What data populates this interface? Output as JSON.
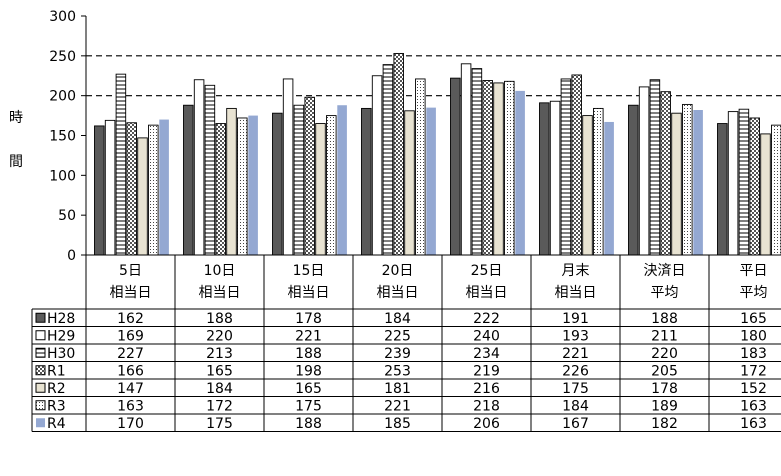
{
  "chart_data": {
    "type": "bar",
    "title": "",
    "ylabel": "時間",
    "ylim": [
      0,
      300
    ],
    "yticks": [
      0,
      50,
      100,
      150,
      200,
      250,
      300
    ],
    "gridlines": "dashed at 200 and 250",
    "categories": [
      [
        "5日",
        "相当日"
      ],
      [
        "10日",
        "相当日"
      ],
      [
        "15日",
        "相当日"
      ],
      [
        "20日",
        "相当日"
      ],
      [
        "25日",
        "相当日"
      ],
      [
        "月末",
        "相当日"
      ],
      [
        "決済日",
        "平均"
      ],
      [
        "平日",
        "平均"
      ]
    ],
    "series": [
      {
        "name": "H28",
        "values": [
          162,
          188,
          178,
          184,
          222,
          191,
          188,
          165
        ],
        "color": "#5a5a5a",
        "pattern": "solid"
      },
      {
        "name": "H29",
        "values": [
          169,
          220,
          221,
          225,
          240,
          193,
          211,
          180
        ],
        "color": "#ffffff",
        "pattern": "empty"
      },
      {
        "name": "H30",
        "values": [
          227,
          213,
          188,
          239,
          234,
          221,
          220,
          183
        ],
        "color": "#ffffff",
        "pattern": "hlines"
      },
      {
        "name": "R1",
        "values": [
          166,
          165,
          198,
          253,
          219,
          226,
          205,
          172
        ],
        "color": "#ffffff",
        "pattern": "checker"
      },
      {
        "name": "R2",
        "values": [
          147,
          184,
          165,
          181,
          216,
          175,
          178,
          152
        ],
        "color": "#e8e3d2",
        "pattern": "beige"
      },
      {
        "name": "R3",
        "values": [
          163,
          172,
          175,
          221,
          218,
          184,
          189,
          163
        ],
        "color": "#ffffff",
        "pattern": "dots"
      },
      {
        "name": "R4",
        "values": [
          170,
          175,
          188,
          185,
          206,
          167,
          182,
          163
        ],
        "color": "#94a8d2",
        "pattern": "solid"
      }
    ]
  }
}
